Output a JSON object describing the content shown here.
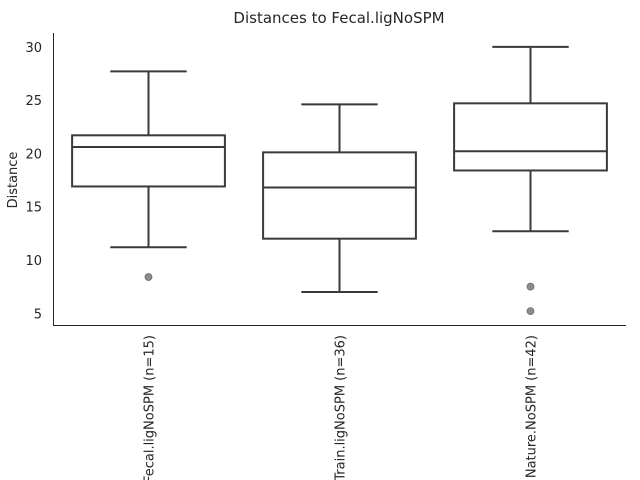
{
  "chart_data": {
    "type": "box",
    "title": "Distances to Fecal.ligNoSPM",
    "xlabel": "",
    "ylabel": "Distance",
    "ylim": [
      3.9,
      31.3
    ],
    "yticks": [
      5,
      10,
      15,
      20,
      25,
      30
    ],
    "grid": false,
    "categories": [
      "Fecal.ligNoSPM (n=15)",
      "Train.ligNoSPM (n=36)",
      "Nature.NoSPM (n=42)"
    ],
    "boxes": [
      {
        "whisker_low": 11.2,
        "q1": 16.9,
        "median": 20.6,
        "q3": 21.7,
        "whisker_high": 27.7,
        "outliers": [
          8.4
        ]
      },
      {
        "whisker_low": 7.0,
        "q1": 12.0,
        "median": 16.8,
        "q3": 20.1,
        "whisker_high": 24.6,
        "outliers": []
      },
      {
        "whisker_low": 12.7,
        "q1": 18.4,
        "median": 20.2,
        "q3": 24.7,
        "whisker_high": 30.0,
        "outliers": [
          7.5,
          5.2
        ]
      }
    ]
  }
}
